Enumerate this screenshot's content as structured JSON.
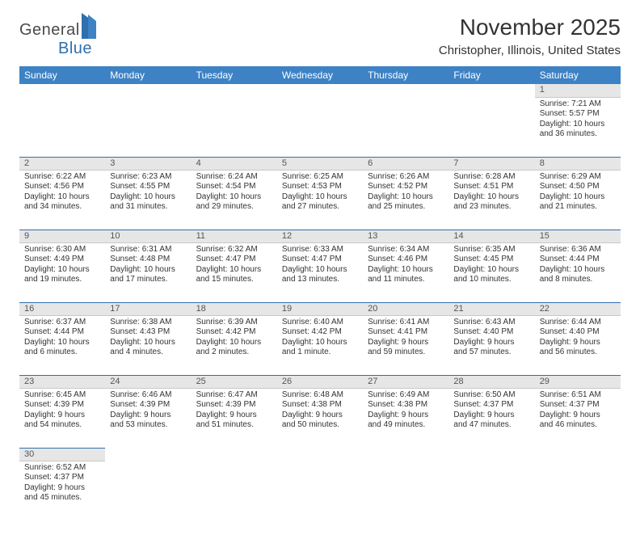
{
  "logo": {
    "word1": "General",
    "word2": "Blue"
  },
  "title": "November 2025",
  "subtitle": "Christopher, Illinois, United States",
  "colors": {
    "header_bg": "#3d82c4",
    "header_text": "#ffffff",
    "daynum_bg": "#e6e6e6",
    "row_divider": "#2f6fae",
    "text": "#333333"
  },
  "dayNames": [
    "Sunday",
    "Monday",
    "Tuesday",
    "Wednesday",
    "Thursday",
    "Friday",
    "Saturday"
  ],
  "weeks": [
    [
      null,
      null,
      null,
      null,
      null,
      null,
      {
        "n": "1",
        "sr": "Sunrise: 7:21 AM",
        "ss": "Sunset: 5:57 PM",
        "dl": "Daylight: 10 hours and 36 minutes."
      }
    ],
    [
      {
        "n": "2",
        "sr": "Sunrise: 6:22 AM",
        "ss": "Sunset: 4:56 PM",
        "dl": "Daylight: 10 hours and 34 minutes."
      },
      {
        "n": "3",
        "sr": "Sunrise: 6:23 AM",
        "ss": "Sunset: 4:55 PM",
        "dl": "Daylight: 10 hours and 31 minutes."
      },
      {
        "n": "4",
        "sr": "Sunrise: 6:24 AM",
        "ss": "Sunset: 4:54 PM",
        "dl": "Daylight: 10 hours and 29 minutes."
      },
      {
        "n": "5",
        "sr": "Sunrise: 6:25 AM",
        "ss": "Sunset: 4:53 PM",
        "dl": "Daylight: 10 hours and 27 minutes."
      },
      {
        "n": "6",
        "sr": "Sunrise: 6:26 AM",
        "ss": "Sunset: 4:52 PM",
        "dl": "Daylight: 10 hours and 25 minutes."
      },
      {
        "n": "7",
        "sr": "Sunrise: 6:28 AM",
        "ss": "Sunset: 4:51 PM",
        "dl": "Daylight: 10 hours and 23 minutes."
      },
      {
        "n": "8",
        "sr": "Sunrise: 6:29 AM",
        "ss": "Sunset: 4:50 PM",
        "dl": "Daylight: 10 hours and 21 minutes."
      }
    ],
    [
      {
        "n": "9",
        "sr": "Sunrise: 6:30 AM",
        "ss": "Sunset: 4:49 PM",
        "dl": "Daylight: 10 hours and 19 minutes."
      },
      {
        "n": "10",
        "sr": "Sunrise: 6:31 AM",
        "ss": "Sunset: 4:48 PM",
        "dl": "Daylight: 10 hours and 17 minutes."
      },
      {
        "n": "11",
        "sr": "Sunrise: 6:32 AM",
        "ss": "Sunset: 4:47 PM",
        "dl": "Daylight: 10 hours and 15 minutes."
      },
      {
        "n": "12",
        "sr": "Sunrise: 6:33 AM",
        "ss": "Sunset: 4:47 PM",
        "dl": "Daylight: 10 hours and 13 minutes."
      },
      {
        "n": "13",
        "sr": "Sunrise: 6:34 AM",
        "ss": "Sunset: 4:46 PM",
        "dl": "Daylight: 10 hours and 11 minutes."
      },
      {
        "n": "14",
        "sr": "Sunrise: 6:35 AM",
        "ss": "Sunset: 4:45 PM",
        "dl": "Daylight: 10 hours and 10 minutes."
      },
      {
        "n": "15",
        "sr": "Sunrise: 6:36 AM",
        "ss": "Sunset: 4:44 PM",
        "dl": "Daylight: 10 hours and 8 minutes."
      }
    ],
    [
      {
        "n": "16",
        "sr": "Sunrise: 6:37 AM",
        "ss": "Sunset: 4:44 PM",
        "dl": "Daylight: 10 hours and 6 minutes."
      },
      {
        "n": "17",
        "sr": "Sunrise: 6:38 AM",
        "ss": "Sunset: 4:43 PM",
        "dl": "Daylight: 10 hours and 4 minutes."
      },
      {
        "n": "18",
        "sr": "Sunrise: 6:39 AM",
        "ss": "Sunset: 4:42 PM",
        "dl": "Daylight: 10 hours and 2 minutes."
      },
      {
        "n": "19",
        "sr": "Sunrise: 6:40 AM",
        "ss": "Sunset: 4:42 PM",
        "dl": "Daylight: 10 hours and 1 minute."
      },
      {
        "n": "20",
        "sr": "Sunrise: 6:41 AM",
        "ss": "Sunset: 4:41 PM",
        "dl": "Daylight: 9 hours and 59 minutes."
      },
      {
        "n": "21",
        "sr": "Sunrise: 6:43 AM",
        "ss": "Sunset: 4:40 PM",
        "dl": "Daylight: 9 hours and 57 minutes."
      },
      {
        "n": "22",
        "sr": "Sunrise: 6:44 AM",
        "ss": "Sunset: 4:40 PM",
        "dl": "Daylight: 9 hours and 56 minutes."
      }
    ],
    [
      {
        "n": "23",
        "sr": "Sunrise: 6:45 AM",
        "ss": "Sunset: 4:39 PM",
        "dl": "Daylight: 9 hours and 54 minutes."
      },
      {
        "n": "24",
        "sr": "Sunrise: 6:46 AM",
        "ss": "Sunset: 4:39 PM",
        "dl": "Daylight: 9 hours and 53 minutes."
      },
      {
        "n": "25",
        "sr": "Sunrise: 6:47 AM",
        "ss": "Sunset: 4:39 PM",
        "dl": "Daylight: 9 hours and 51 minutes."
      },
      {
        "n": "26",
        "sr": "Sunrise: 6:48 AM",
        "ss": "Sunset: 4:38 PM",
        "dl": "Daylight: 9 hours and 50 minutes."
      },
      {
        "n": "27",
        "sr": "Sunrise: 6:49 AM",
        "ss": "Sunset: 4:38 PM",
        "dl": "Daylight: 9 hours and 49 minutes."
      },
      {
        "n": "28",
        "sr": "Sunrise: 6:50 AM",
        "ss": "Sunset: 4:37 PM",
        "dl": "Daylight: 9 hours and 47 minutes."
      },
      {
        "n": "29",
        "sr": "Sunrise: 6:51 AM",
        "ss": "Sunset: 4:37 PM",
        "dl": "Daylight: 9 hours and 46 minutes."
      }
    ],
    [
      {
        "n": "30",
        "sr": "Sunrise: 6:52 AM",
        "ss": "Sunset: 4:37 PM",
        "dl": "Daylight: 9 hours and 45 minutes."
      },
      null,
      null,
      null,
      null,
      null,
      null
    ]
  ]
}
